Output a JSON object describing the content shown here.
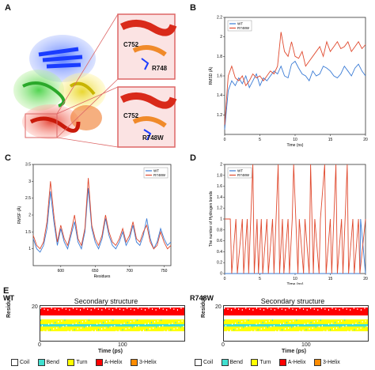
{
  "panels": {
    "A": {
      "letter": "A",
      "labels": {
        "top_c": "C752",
        "top_r": "R748",
        "bot_c": "C752",
        "bot_r": "R748W"
      }
    },
    "B": {
      "letter": "B",
      "chart_data": {
        "type": "line",
        "xlabel": "Time (ns)",
        "ylabel": "RMSD (Å)",
        "xlim": [
          0,
          20
        ],
        "ylim": [
          1.0,
          2.2
        ],
        "xticks": [
          "0",
          "5",
          "10",
          "15",
          "20"
        ],
        "yticks": [
          "1.2",
          "1.4",
          "1.6",
          "1.8",
          "2",
          "2.2"
        ],
        "series": [
          {
            "name": "WT",
            "color": "#3a7bd5",
            "x": [
              0,
              0.5,
              1,
              1.5,
              2,
              2.5,
              3,
              3.5,
              4,
              4.5,
              5,
              5.5,
              6,
              6.5,
              7,
              7.5,
              8,
              8.5,
              9,
              9.5,
              10,
              10.5,
              11,
              11.5,
              12,
              12.5,
              13,
              13.5,
              14,
              14.5,
              15,
              15.5,
              16,
              16.5,
              17,
              17.5,
              18,
              18.5,
              19,
              19.5,
              20
            ],
            "values": [
              1.05,
              1.45,
              1.55,
              1.5,
              1.58,
              1.52,
              1.6,
              1.48,
              1.55,
              1.62,
              1.5,
              1.58,
              1.55,
              1.6,
              1.65,
              1.62,
              1.7,
              1.6,
              1.58,
              1.72,
              1.75,
              1.68,
              1.62,
              1.6,
              1.55,
              1.65,
              1.6,
              1.62,
              1.7,
              1.68,
              1.65,
              1.6,
              1.58,
              1.62,
              1.7,
              1.65,
              1.6,
              1.68,
              1.72,
              1.65,
              1.6
            ]
          },
          {
            "name": "R748W",
            "color": "#e04a2f",
            "x": [
              0,
              0.5,
              1,
              1.5,
              2,
              2.5,
              3,
              3.5,
              4,
              4.5,
              5,
              5.5,
              6,
              6.5,
              7,
              7.5,
              8,
              8.5,
              9,
              9.5,
              10,
              10.5,
              11,
              11.5,
              12,
              12.5,
              13,
              13.5,
              14,
              14.5,
              15,
              15.5,
              16,
              16.5,
              17,
              17.5,
              18,
              18.5,
              19,
              19.5,
              20
            ],
            "values": [
              1.1,
              1.6,
              1.7,
              1.58,
              1.55,
              1.6,
              1.5,
              1.55,
              1.62,
              1.58,
              1.6,
              1.55,
              1.6,
              1.65,
              1.62,
              1.7,
              2.05,
              1.85,
              1.8,
              1.95,
              1.8,
              1.78,
              1.85,
              1.7,
              1.75,
              1.8,
              1.85,
              1.9,
              1.8,
              1.95,
              1.85,
              1.9,
              1.95,
              1.88,
              1.9,
              1.95,
              1.85,
              1.9,
              1.95,
              1.88,
              1.92
            ]
          }
        ],
        "legend": "top-left"
      }
    },
    "C": {
      "letter": "C",
      "chart_data": {
        "type": "line",
        "xlabel": "Residues",
        "ylabel": "RMSF (Å)",
        "xlim": [
          560,
          760
        ],
        "ylim": [
          0.5,
          3.5
        ],
        "xticks": [
          "600",
          "650",
          "700",
          "750"
        ],
        "yticks": [
          "1",
          "1.5",
          "2",
          "2.5",
          "3",
          "3.5"
        ],
        "series": [
          {
            "name": "WT",
            "color": "#3a7bd5",
            "x": [
              560,
              565,
              570,
              575,
              580,
              585,
              590,
              595,
              600,
              605,
              610,
              615,
              620,
              625,
              630,
              635,
              640,
              645,
              650,
              655,
              660,
              665,
              670,
              675,
              680,
              685,
              690,
              695,
              700,
              705,
              710,
              715,
              720,
              725,
              730,
              735,
              740,
              745,
              750,
              755,
              760
            ],
            "values": [
              1.3,
              1.0,
              0.9,
              1.1,
              1.6,
              2.7,
              1.8,
              1.1,
              1.6,
              1.2,
              1.0,
              1.4,
              1.8,
              1.2,
              1.0,
              1.5,
              2.8,
              1.6,
              1.2,
              1.0,
              1.3,
              1.9,
              1.4,
              1.1,
              1.0,
              1.2,
              1.5,
              1.1,
              1.3,
              1.7,
              1.2,
              1.1,
              1.4,
              1.9,
              1.3,
              1.0,
              1.2,
              1.6,
              1.3,
              1.1,
              1.2
            ]
          },
          {
            "name": "R748W",
            "color": "#e04a2f",
            "x": [
              560,
              565,
              570,
              575,
              580,
              585,
              590,
              595,
              600,
              605,
              610,
              615,
              620,
              625,
              630,
              635,
              640,
              645,
              650,
              655,
              660,
              665,
              670,
              675,
              680,
              685,
              690,
              695,
              700,
              705,
              710,
              715,
              720,
              725,
              730,
              735,
              740,
              745,
              750,
              755,
              760
            ],
            "values": [
              1.4,
              1.1,
              1.0,
              1.2,
              1.8,
              3.0,
              2.0,
              1.2,
              1.7,
              1.3,
              1.1,
              1.5,
              2.0,
              1.3,
              1.1,
              1.6,
              3.1,
              1.7,
              1.3,
              1.1,
              1.4,
              2.0,
              1.5,
              1.2,
              1.1,
              1.3,
              1.6,
              1.2,
              1.4,
              1.8,
              1.3,
              1.2,
              1.5,
              1.7,
              1.2,
              1.0,
              1.1,
              1.5,
              1.2,
              1.0,
              1.1
            ]
          }
        ],
        "legend": "top-right"
      }
    },
    "D": {
      "letter": "D",
      "chart_data": {
        "type": "line",
        "xlabel": "Time (ns)",
        "ylabel": "The number of Hydrogen bonds",
        "xlim": [
          0,
          20
        ],
        "ylim": [
          0,
          2
        ],
        "xticks": [
          "0",
          "5",
          "10",
          "15",
          "20"
        ],
        "yticks": [
          "0",
          "0.2",
          "0.4",
          "0.6",
          "0.8",
          "1",
          "1.2",
          "1.4",
          "1.6",
          "1.8",
          "2"
        ],
        "series": [
          {
            "name": "WT",
            "color": "#3a7bd5",
            "x": [
              0,
              19.2,
              19.3,
              20
            ],
            "values": [
              0,
              0,
              1,
              0
            ]
          },
          {
            "name": "R748W",
            "color": "#e04a2f",
            "x": [
              0,
              0.8,
              1.0,
              1.6,
              1.8,
              2.5,
              2.7,
              3.2,
              3.4,
              4.0,
              4.2,
              4.6,
              4.8,
              5.2,
              5.4,
              6.0,
              6.2,
              6.8,
              7.0,
              7.6,
              7.8,
              8.2,
              8.4,
              9.0,
              9.2,
              9.6,
              9.8,
              10.4,
              10.6,
              11.2,
              11.4,
              12.0,
              12.2,
              12.6,
              12.8,
              13.4,
              13.6,
              14.2,
              14.4,
              15.0,
              15.2,
              15.8,
              16.0,
              16.6,
              16.8,
              17.4,
              17.6,
              18.2,
              18.4,
              19.0,
              19.2,
              20
            ],
            "values": [
              1,
              1,
              0,
              1,
              0,
              1,
              0,
              1,
              0,
              2,
              0,
              1,
              0,
              1,
              0,
              1,
              0,
              1,
              0,
              2,
              0,
              1,
              0,
              1,
              0,
              1,
              2,
              0,
              1,
              0,
              1,
              0,
              2,
              0,
              1,
              0,
              1,
              2,
              0,
              1,
              0,
              2,
              0,
              1,
              0,
              2,
              0,
              1,
              0,
              1,
              0,
              1
            ]
          }
        ],
        "legend": "top-left"
      }
    },
    "E": {
      "letter": "E",
      "left": {
        "label": "WT",
        "title": "Secondary structure"
      },
      "right": {
        "label": "R748W",
        "title": "Secondary structure"
      },
      "ylabel": "Residue",
      "xlabel": "Time (ps)",
      "ytick": "20",
      "xticks": [
        "0",
        "100"
      ],
      "legend": [
        {
          "name": "Coil",
          "color": "#ffffff"
        },
        {
          "name": "Bend",
          "color": "#40e0d0"
        },
        {
          "name": "Turn",
          "color": "#ffff00"
        },
        {
          "name": "A-Helix",
          "color": "#ff0000"
        },
        {
          "name": "3-Helix",
          "color": "#ff8c00"
        }
      ]
    }
  }
}
